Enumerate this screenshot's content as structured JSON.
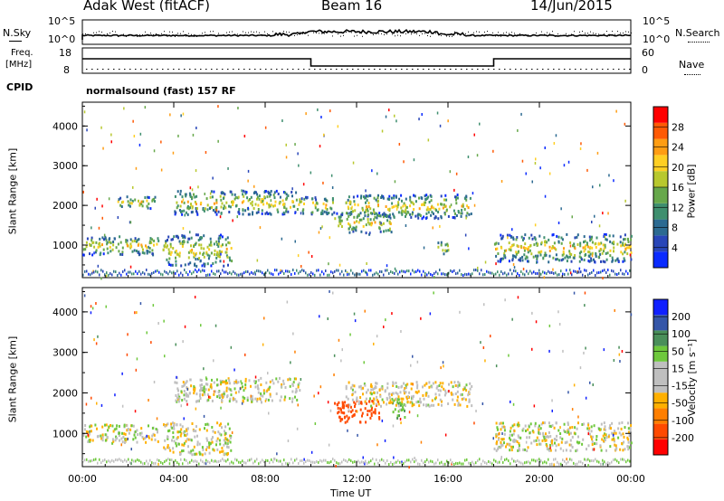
{
  "header": {
    "station": "Adak West (fitACF)",
    "beam": "Beam 16",
    "date": "14/Jun/2015"
  },
  "strips": {
    "nsky_label": "N.Sky",
    "nsky_ticks": [
      "10^5",
      "10^0"
    ],
    "nsearch_label": "N.Search",
    "nsearch_ticks": [
      "10^5",
      "10^0"
    ],
    "freq_label_1": "Freq.",
    "freq_label_2": "[MHz]",
    "freq_ticks": [
      "18",
      "8"
    ],
    "nave_label": "Nave",
    "nave_ticks": [
      "60",
      "0"
    ],
    "cpid_label": "CPID",
    "cpid_value": "normalsound (fast) 157 RF"
  },
  "chart_data": [
    {
      "type": "heatmap",
      "name": "power",
      "ylabel": "Slant Range [km]",
      "yticks": [
        "1000",
        "2000",
        "3000",
        "4000"
      ],
      "ylim": [
        180,
        4600
      ],
      "xlim": [
        0,
        24
      ],
      "colorbar_label": "Power [dB]",
      "colorbar_ticks": [
        "4",
        "8",
        "12",
        "16",
        "20",
        "24",
        "28"
      ],
      "colorbar_colors": [
        "#0a2bff",
        "#2946b8",
        "#2c6a91",
        "#3f8f6f",
        "#67a84b",
        "#b8c82e",
        "#ffcf23",
        "#ff9d13",
        "#ff5a05",
        "#ff0000"
      ],
      "echo_regions": [
        {
          "x0": 0.0,
          "x1": 3.3,
          "y0": 780,
          "y1": 1250
        },
        {
          "x0": 1.5,
          "x1": 3.2,
          "y0": 1950,
          "y1": 2250
        },
        {
          "x0": 3.5,
          "x1": 6.5,
          "y0": 500,
          "y1": 1300
        },
        {
          "x0": 4.0,
          "x1": 9.5,
          "y0": 1800,
          "y1": 2400
        },
        {
          "x0": 9.5,
          "x1": 11.0,
          "y0": 1800,
          "y1": 2250
        },
        {
          "x0": 11.0,
          "x1": 13.5,
          "y0": 1300,
          "y1": 1850
        },
        {
          "x0": 11.5,
          "x1": 17.0,
          "y0": 1700,
          "y1": 2300
        },
        {
          "x0": 15.5,
          "x1": 16.0,
          "y0": 800,
          "y1": 1150
        },
        {
          "x0": 18.0,
          "x1": 24.0,
          "y0": 600,
          "y1": 1300
        }
      ]
    },
    {
      "type": "heatmap",
      "name": "velocity",
      "ylabel": "Slant Range [km]",
      "yticks": [
        "1000",
        "2000",
        "3000",
        "4000"
      ],
      "ylim": [
        180,
        4600
      ],
      "xlim": [
        0,
        24
      ],
      "xlabel": "Time UT",
      "xticks": [
        "00:00",
        "04:00",
        "08:00",
        "12:00",
        "16:00",
        "20:00",
        "00:00"
      ],
      "colorbar_label": "Velocity [m s⁻¹]",
      "colorbar_ticks": [
        "-200",
        "-100",
        "-50",
        "-15",
        "15",
        "50",
        "100",
        "200"
      ],
      "colorbar_colors": [
        "#ff0000",
        "#ff4a00",
        "#ff7f00",
        "#ffb000",
        "#bfbfbf",
        "#bfbfbf",
        "#6ec83c",
        "#4a8f5a",
        "#3556a8",
        "#1020ff"
      ],
      "echo_regions": [
        {
          "x0": 0.0,
          "x1": 3.3,
          "y0": 780,
          "y1": 1250,
          "v": 0
        },
        {
          "x0": 3.5,
          "x1": 6.5,
          "y0": 500,
          "y1": 1300,
          "v": 0
        },
        {
          "x0": 4.0,
          "x1": 9.5,
          "y0": 1800,
          "y1": 2400,
          "v": 0
        },
        {
          "x0": 11.0,
          "x1": 13.0,
          "y0": 1300,
          "y1": 1850,
          "v": -150
        },
        {
          "x0": 13.5,
          "x1": 14.2,
          "y0": 1400,
          "y1": 1900,
          "v": 40
        },
        {
          "x0": 11.5,
          "x1": 17.0,
          "y0": 1700,
          "y1": 2300,
          "v": -10
        },
        {
          "x0": 18.0,
          "x1": 24.0,
          "y0": 600,
          "y1": 1300,
          "v": 0
        }
      ]
    }
  ]
}
